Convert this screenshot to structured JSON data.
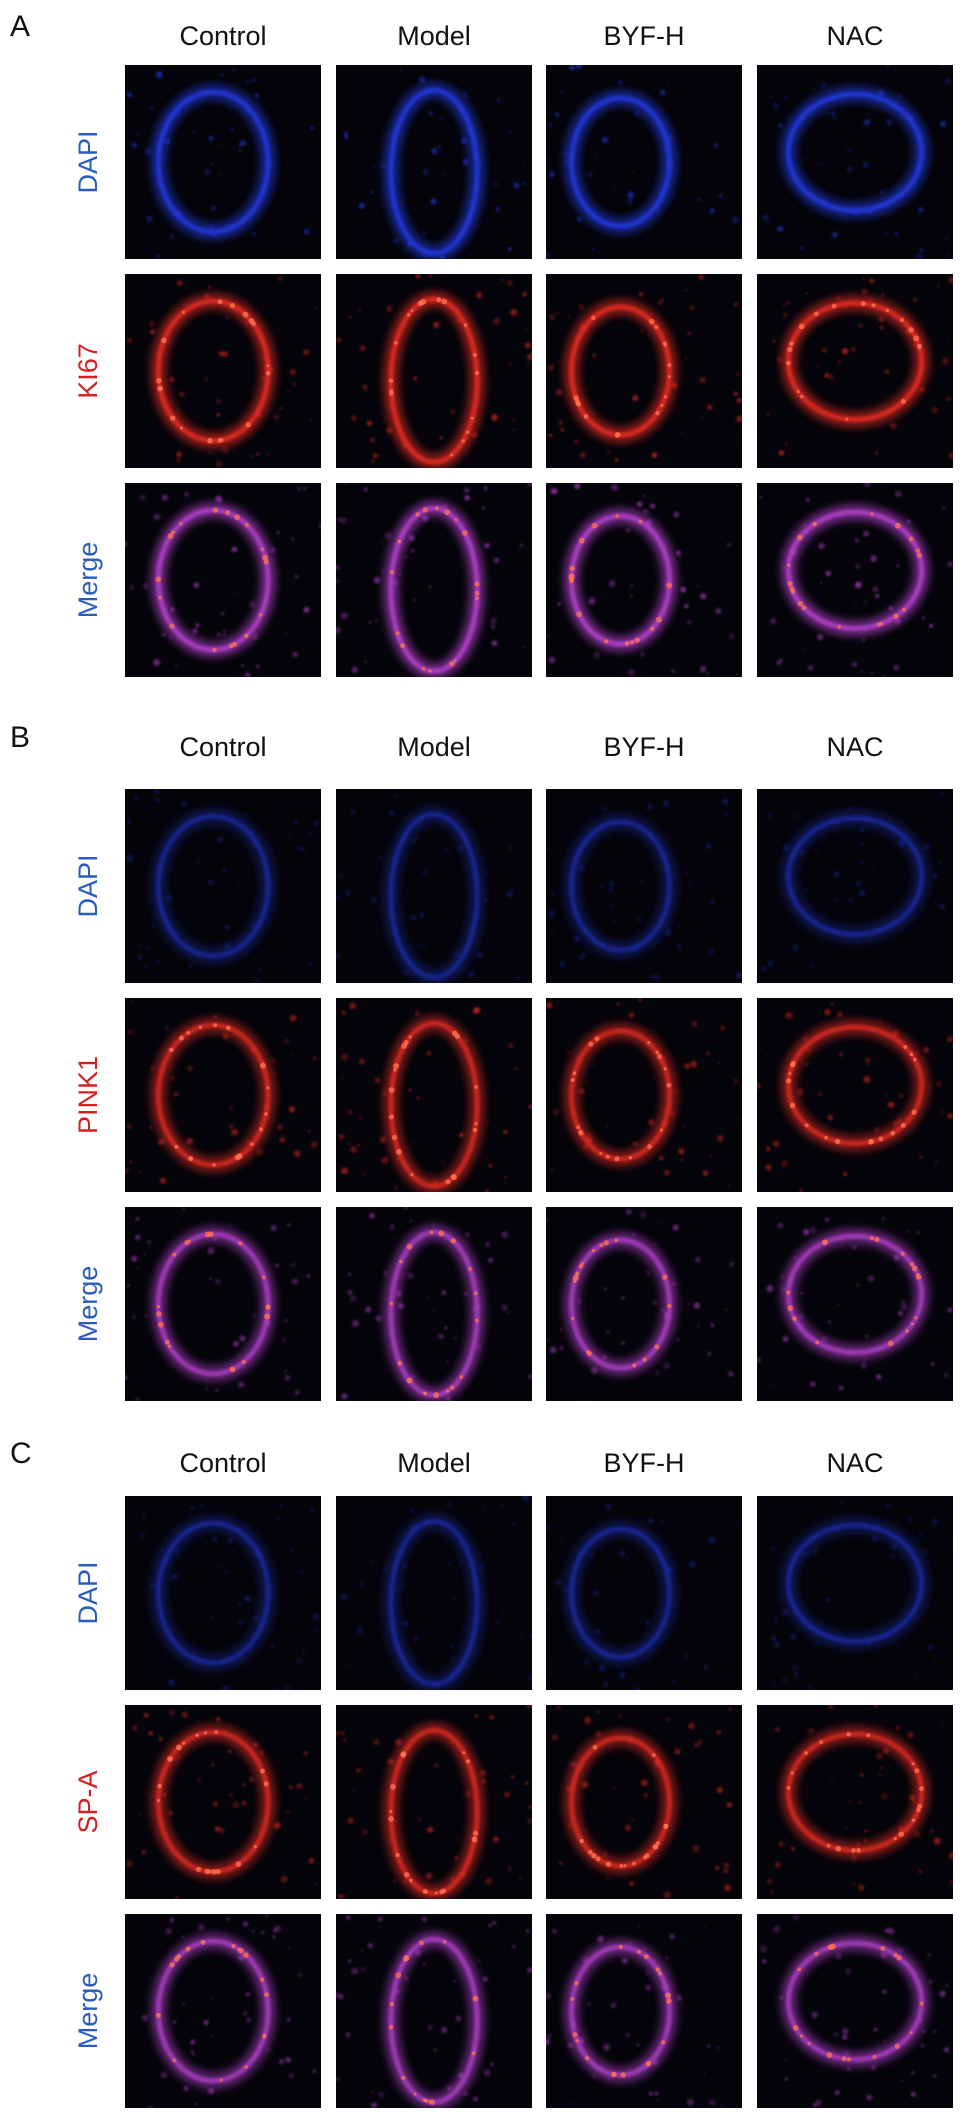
{
  "panels": [
    {
      "label": "A",
      "columns": [
        "Control",
        "Model",
        "BYF-H",
        "NAC"
      ],
      "rows": [
        "DAPI",
        "KI67",
        "Merge"
      ]
    },
    {
      "label": "B",
      "columns": [
        "Control",
        "Model",
        "BYF-H",
        "NAC"
      ],
      "rows": [
        "DAPI",
        "PINK1",
        "Merge"
      ]
    },
    {
      "label": "C",
      "columns": [
        "Control",
        "Model",
        "BYF-H",
        "NAC"
      ],
      "rows": [
        "DAPI",
        "SP-A",
        "Merge"
      ]
    }
  ]
}
